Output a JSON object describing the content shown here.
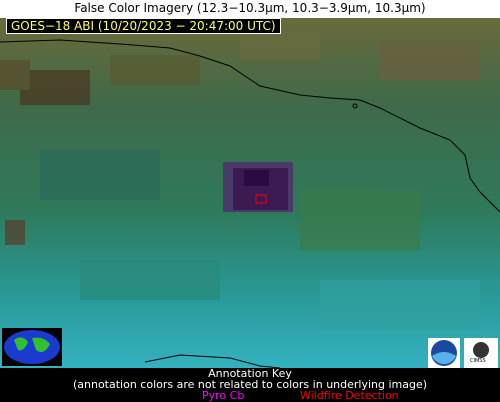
{
  "title": "False Color Imagery (12.3−10.3µm, 10.3−3.9µm, 10.3µm)",
  "stamp": "GOES−18 ABI (10/20/2023 − 20:47:00 UTC)",
  "annotation_key": {
    "heading": "Annotation Key",
    "note": "(annotation colors are not related to colors in underlying image)",
    "items": [
      "Pyro Cb",
      "Wildfire Detection"
    ]
  },
  "logos": {
    "cimss": "CIMSS"
  }
}
